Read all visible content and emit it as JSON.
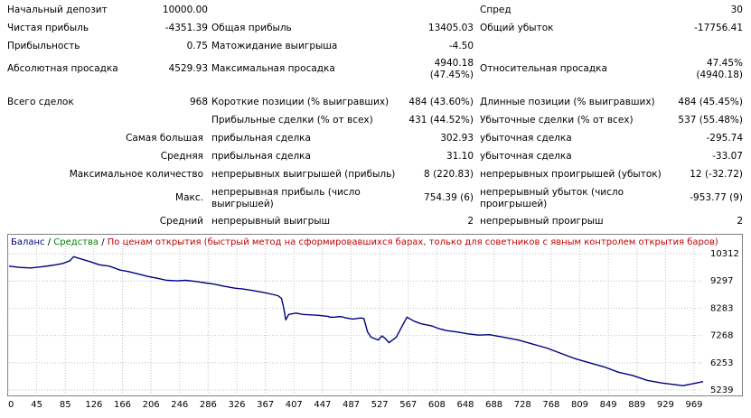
{
  "stats": {
    "initial_deposit_label": "Начальный депозит",
    "initial_deposit": "10000.00",
    "spread_label": "Спред",
    "spread": "30",
    "net_profit_label": "Чистая прибыль",
    "net_profit": "-4351.39",
    "gross_profit_label": "Общая прибыль",
    "gross_profit": "13405.03",
    "gross_loss_label": "Общий убыток",
    "gross_loss": "-17756.41",
    "profit_factor_label": "Прибыльность",
    "profit_factor": "0.75",
    "expected_payoff_label": "Матожидание выигрыша",
    "expected_payoff": "-4.50",
    "abs_drawdown_label": "Абсолютная просадка",
    "abs_drawdown": "4529.93",
    "max_drawdown_label": "Максимальная просадка",
    "max_drawdown_value": "4940.18",
    "max_drawdown_pct": "(47.45%)",
    "rel_drawdown_label": "Относительная просадка",
    "rel_drawdown_pct": "47.45%",
    "rel_drawdown_value": "(4940.18)",
    "total_trades_label": "Всего сделок",
    "total_trades": "968",
    "short_positions_label": "Короткие позиции (% выигравших)",
    "short_positions": "484 (43.60%)",
    "long_positions_label": "Длинные позиции (% выигравших)",
    "long_positions": "484 (45.45%)",
    "profit_trades_label": "Прибыльные сделки (% от всех)",
    "profit_trades": "431 (44.52%)",
    "loss_trades_label": "Убыточные сделки (% от всех)",
    "loss_trades": "537 (55.48%)",
    "largest_label": "Самая большая",
    "largest_profit_label": "прибыльная сделка",
    "largest_profit": "302.93",
    "largest_loss_label": "убыточная сделка",
    "largest_loss": "-295.74",
    "average_label": "Средняя",
    "average_profit_label": "прибыльная сделка",
    "average_profit": "31.10",
    "average_loss_label": "убыточная сделка",
    "average_loss": "-33.07",
    "max_count_label": "Максимальное количество",
    "max_consec_wins_label": "непрерывных выигрышей (прибыль)",
    "max_consec_wins": "8 (220.83)",
    "max_consec_losses_label": "непрерывных проигрышей (убыток)",
    "max_consec_losses": "12 (-32.72)",
    "max_label": "Макс.",
    "max_consec_profit_label": "непрерывная прибыль (число выигрышей)",
    "max_consec_profit": "754.39 (6)",
    "max_consec_loss_label": "непрерывный убыток (число проигрышей)",
    "max_consec_loss": "-953.77 (9)",
    "avg_label": "Средний",
    "avg_consec_wins_label": "непрерывный выигрыш",
    "avg_consec_wins": "2",
    "avg_consec_losses_label": "непрерывный проигрыш",
    "avg_consec_losses": "2"
  },
  "legend": {
    "balance": "Баланс",
    "sep1": " / ",
    "equity": "Средства",
    "sep2": " / ",
    "note": "По ценам открытия (быстрый метод на сформировавшихся барах, только для советников с явным контролем открытия баров)"
  },
  "colors": {
    "balance": "#000080",
    "equity": "#008000",
    "note": "#c00000",
    "grid": "#c0c0c0"
  },
  "chart_data": {
    "type": "line",
    "title": "",
    "xlabel": "",
    "ylabel": "",
    "grid": true,
    "legend": "top-left",
    "x_ticks": [
      0,
      45,
      85,
      126,
      166,
      206,
      246,
      286,
      326,
      367,
      407,
      447,
      487,
      527,
      567,
      608,
      648,
      688,
      728,
      768,
      809,
      849,
      889,
      929,
      969
    ],
    "y_ticks": [
      10312,
      9297,
      8283,
      7268,
      6253,
      5239
    ],
    "xlim": [
      0,
      968
    ],
    "ylim": [
      5239,
      10312
    ],
    "series": [
      {
        "name": "Баланс",
        "x": [
          0,
          15,
          30,
          45,
          55,
          65,
          75,
          85,
          90,
          100,
          115,
          126,
          140,
          155,
          166,
          180,
          195,
          206,
          220,
          235,
          246,
          260,
          275,
          286,
          300,
          315,
          326,
          340,
          355,
          367,
          375,
          380,
          383,
          386,
          390,
          400,
          410,
          430,
          445,
          447,
          455,
          460,
          465,
          470,
          480,
          490,
          495,
          500,
          505,
          510,
          515,
          520,
          525,
          530,
          540,
          555,
          565,
          575,
          590,
          600,
          610,
          625,
          640,
          655,
          670,
          690,
          710,
          730,
          750,
          770,
          790,
          810,
          830,
          850,
          870,
          890,
          910,
          925,
          940,
          955,
          968
        ],
        "values": [
          9850,
          9800,
          9780,
          9820,
          9860,
          9900,
          9950,
          10050,
          10200,
          10120,
          10000,
          9900,
          9850,
          9700,
          9650,
          9560,
          9460,
          9400,
          9320,
          9300,
          9320,
          9280,
          9220,
          9180,
          9100,
          9030,
          9000,
          8940,
          8870,
          8800,
          8750,
          8650,
          8300,
          7850,
          8050,
          8100,
          8050,
          8020,
          7980,
          7950,
          7950,
          7970,
          7960,
          7920,
          7880,
          7920,
          7900,
          7400,
          7200,
          7150,
          7100,
          7250,
          7150,
          7000,
          7200,
          7950,
          7800,
          7700,
          7620,
          7520,
          7450,
          7400,
          7330,
          7280,
          7300,
          7200,
          7100,
          6950,
          6800,
          6600,
          6400,
          6250,
          6100,
          5900,
          5780,
          5600,
          5500,
          5450,
          5400,
          5480,
          5550
        ]
      }
    ]
  }
}
